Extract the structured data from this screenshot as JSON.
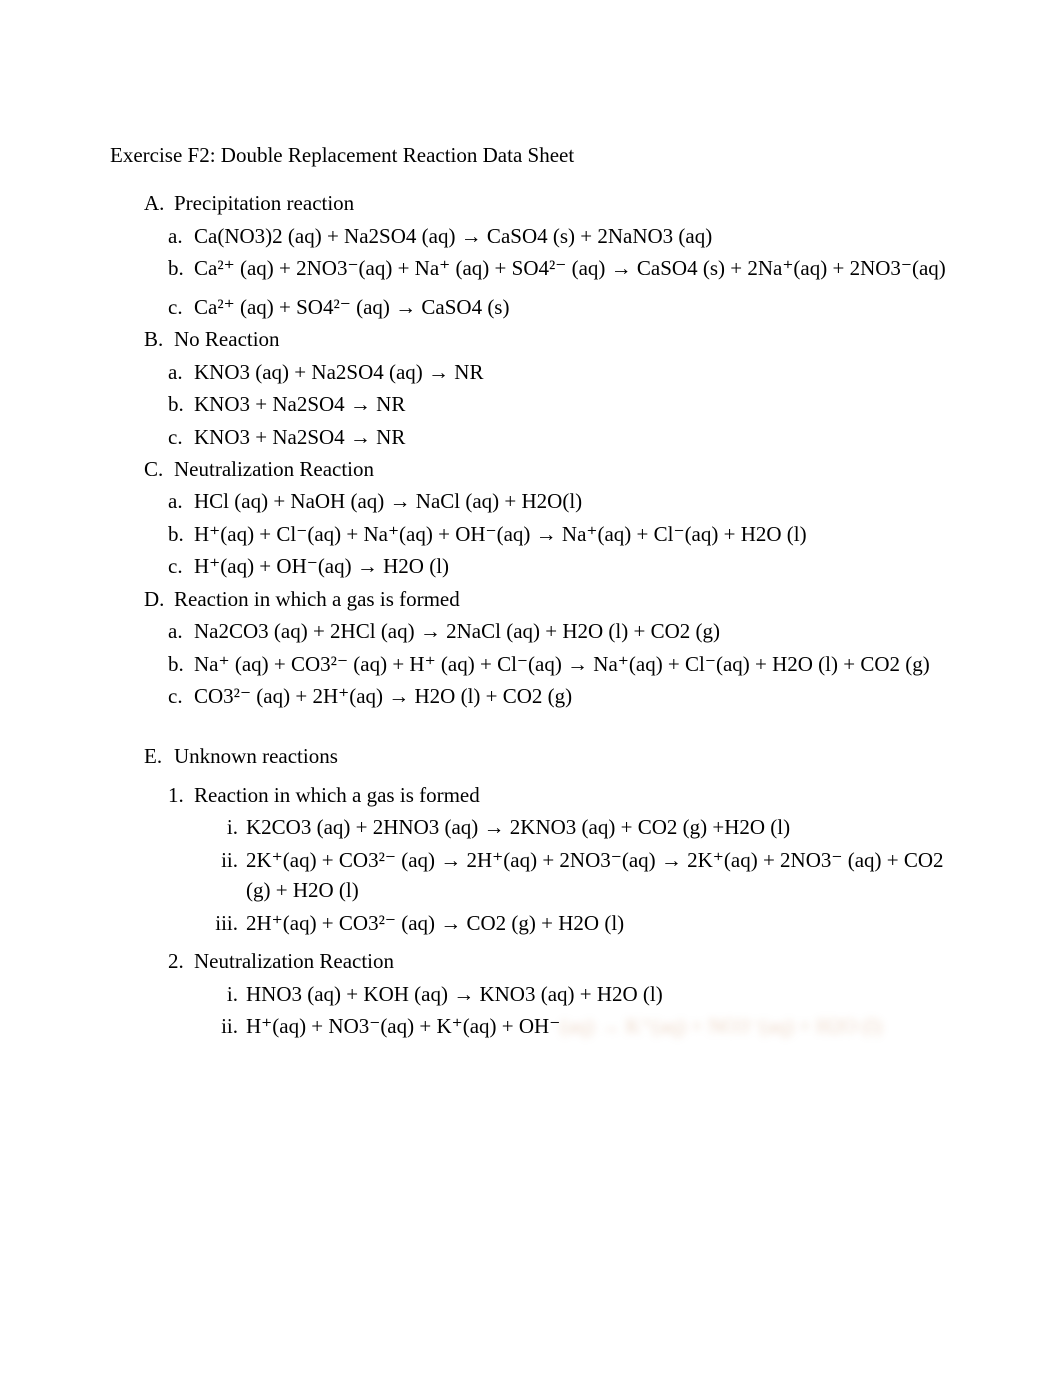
{
  "title": "Exercise F2: Double Replacement Reaction Data Sheet",
  "A": {
    "label": "A.",
    "heading": "Precipitation reaction",
    "a": {
      "m": "a.",
      "t": "Ca(NO3)2 (aq) + Na2SO4 (aq) → CaSO4 (s) + 2NaNO3 (aq)"
    },
    "b": {
      "m": "b.",
      "t": "Ca²⁺ (aq) + 2NO3⁻(aq) + Na⁺ (aq) + SO4²⁻ (aq) → CaSO4 (s) + 2Na⁺(aq) + 2NO3⁻(aq)"
    },
    "c": {
      "m": "c.",
      "t": "Ca²⁺ (aq) + SO4²⁻ (aq) → CaSO4 (s)"
    }
  },
  "B": {
    "label": "B.",
    "heading": "No Reaction",
    "a": {
      "m": "a.",
      "t": "KNO3 (aq) + Na2SO4 (aq) → NR"
    },
    "b": {
      "m": "b.",
      "t": "KNO3 + Na2SO4 → NR"
    },
    "c": {
      "m": "c.",
      "t": "KNO3 + Na2SO4 → NR"
    }
  },
  "C": {
    "label": "C.",
    "heading": "Neutralization Reaction",
    "a": {
      "m": "a.",
      "t": "HCl (aq) + NaOH (aq) → NaCl (aq) + H2O(l)"
    },
    "b": {
      "m": "b.",
      "t": "H⁺(aq) + Cl⁻(aq) + Na⁺(aq) + OH⁻(aq) → Na⁺(aq) + Cl⁻(aq) + H2O (l)"
    },
    "c": {
      "m": "c.",
      "t": "H⁺(aq) + OH⁻(aq) → H2O (l)"
    }
  },
  "D": {
    "label": "D.",
    "heading": "Reaction in which a gas is formed",
    "a": {
      "m": "a.",
      "t": "Na2CO3 (aq) + 2HCl (aq) → 2NaCl (aq) + H2O (l) + CO2 (g)"
    },
    "b": {
      "m": "b.",
      "t": "Na⁺ (aq) + CO3²⁻ (aq) + H⁺ (aq) + Cl⁻(aq) → Na⁺(aq) + Cl⁻(aq) + H2O (l) + CO2 (g)"
    },
    "c": {
      "m": "c.",
      "t": "CO3²⁻ (aq) + 2H⁺(aq) → H2O (l) + CO2 (g)"
    }
  },
  "E": {
    "label": "E.",
    "heading": "Unknown reactions",
    "r1": {
      "m": "1.",
      "heading": "Reaction in which a gas is formed",
      "i": {
        "m": "i.",
        "t": "K2CO3 (aq) + 2HNO3 (aq) → 2KNO3 (aq) + CO2 (g) +H2O (l)"
      },
      "ii": {
        "m": "ii.",
        "t": "2K⁺(aq) + CO3²⁻ (aq) → 2H⁺(aq) + 2NO3⁻(aq) → 2K⁺(aq) + 2NO3⁻ (aq) + CO2 (g) + H2O (l)"
      },
      "iii": {
        "m": "iii.",
        "t": "2H⁺(aq) + CO3²⁻ (aq) → CO2 (g) + H2O (l)"
      }
    },
    "r2": {
      "m": "2.",
      "heading": "Neutralization Reaction",
      "i": {
        "m": "i.",
        "t": "HNO3 (aq) + KOH (aq) → KNO3 (aq) + H2O (l)"
      },
      "ii": {
        "m": "ii.",
        "t": "H⁺(aq) + NO3⁻(aq) + K⁺(aq) + OH⁻"
      },
      "ii_blur": "(aq) → K⁺(aq) + NO3⁻(aq) + H2O (l)"
    }
  }
}
